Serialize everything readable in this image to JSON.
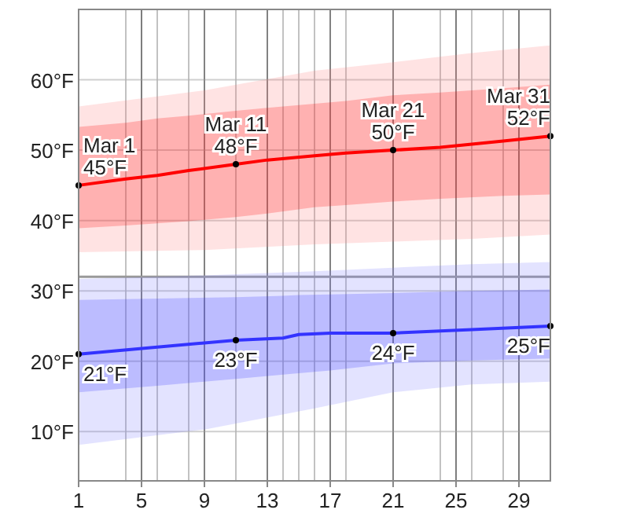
{
  "chart_data": {
    "type": "line",
    "xlim": [
      1,
      31
    ],
    "xticks": [
      1,
      5,
      9,
      13,
      17,
      21,
      25,
      29
    ],
    "ylim": [
      3,
      70
    ],
    "yticks": [
      {
        "value": 10,
        "label": "10°F"
      },
      {
        "value": 20,
        "label": "20°F"
      },
      {
        "value": 30,
        "label": "30°F"
      },
      {
        "value": 40,
        "label": "40°F"
      },
      {
        "value": 50,
        "label": "50°F"
      },
      {
        "value": 60,
        "label": "60°F"
      }
    ],
    "grid": true,
    "line_style": "solid",
    "ref_lines": [
      {
        "axis": "y",
        "value": 32,
        "color": "#999999"
      }
    ],
    "series": [
      {
        "color": "#ff8080",
        "x": [
          1,
          9,
          16,
          21,
          26,
          31
        ],
        "values": [
          null,
          null,
          null,
          null,
          null,
          null
        ],
        "upper": [
          56.2,
          58.5,
          61.3,
          62.5,
          63.8,
          64.9
        ],
        "lower": [
          35.5,
          35.8,
          36.6,
          37.0,
          37.4,
          38.0
        ]
      },
      {
        "color": "#8080ff",
        "x": [
          1,
          9,
          16,
          21,
          26,
          31
        ],
        "values": [
          null,
          null,
          null,
          null,
          null,
          null
        ],
        "upper": [
          31.7,
          32.2,
          32.8,
          33.3,
          33.8,
          34.1
        ],
        "lower": [
          8.1,
          10.3,
          13.3,
          15.6,
          16.7,
          17.1
        ]
      },
      {
        "color": "#ff0000",
        "x": [
          1,
          4,
          6,
          8,
          11,
          13,
          16,
          18,
          21,
          24,
          28,
          31
        ],
        "values": [
          45,
          45.9,
          46.4,
          47.1,
          48,
          48.6,
          49.2,
          49.6,
          50,
          50.4,
          51.3,
          52
        ],
        "upper": [
          53.3,
          53.9,
          54.5,
          54.9,
          55.6,
          56.0,
          56.6,
          57.0,
          57.8,
          58.2,
          58.8,
          59.3
        ],
        "lower": [
          38.9,
          39.3,
          39.6,
          39.9,
          40.5,
          41.0,
          41.9,
          42.2,
          42.7,
          43.1,
          43.5,
          43.7
        ],
        "value_labels": [
          "Mar 1\n45°F",
          null,
          null,
          null,
          "Mar 11\n48°F",
          null,
          null,
          null,
          "Mar 21\n50°F",
          null,
          null,
          "Mar 31\n52°F"
        ]
      },
      {
        "color": "#3333ff",
        "x": [
          1,
          6,
          11,
          14,
          15,
          17,
          21,
          26,
          31
        ],
        "values": [
          21,
          22,
          23,
          23.3,
          23.8,
          24,
          24,
          24.5,
          25
        ],
        "upper": [
          28.7,
          28.9,
          29.1,
          29.3,
          29.4,
          29.5,
          29.7,
          30.0,
          30.2
        ],
        "lower": [
          15.6,
          16.5,
          17.5,
          18.1,
          18.3,
          18.7,
          19.7,
          20.1,
          20.4
        ],
        "value_labels": [
          "21°F",
          null,
          "23°F",
          null,
          null,
          null,
          "24°F",
          null,
          "25°F"
        ]
      }
    ]
  }
}
